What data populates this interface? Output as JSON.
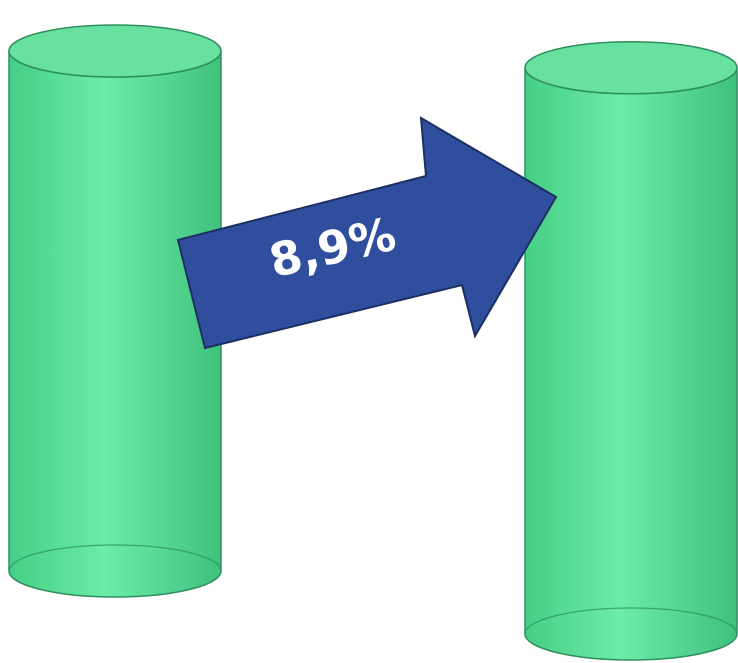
{
  "chart_data": {
    "type": "bar",
    "shape": "cylinder",
    "categories": [
      "",
      ""
    ],
    "values": [
      100,
      108.9
    ],
    "change_label": "8,9%",
    "colors": {
      "cylinder_fill": "#5ee59a",
      "cylinder_edge": "#2e8f5e",
      "arrow_fill": "#2f4f9e",
      "arrow_edge": "#1c2f63",
      "label_text": "#ffffff"
    }
  }
}
